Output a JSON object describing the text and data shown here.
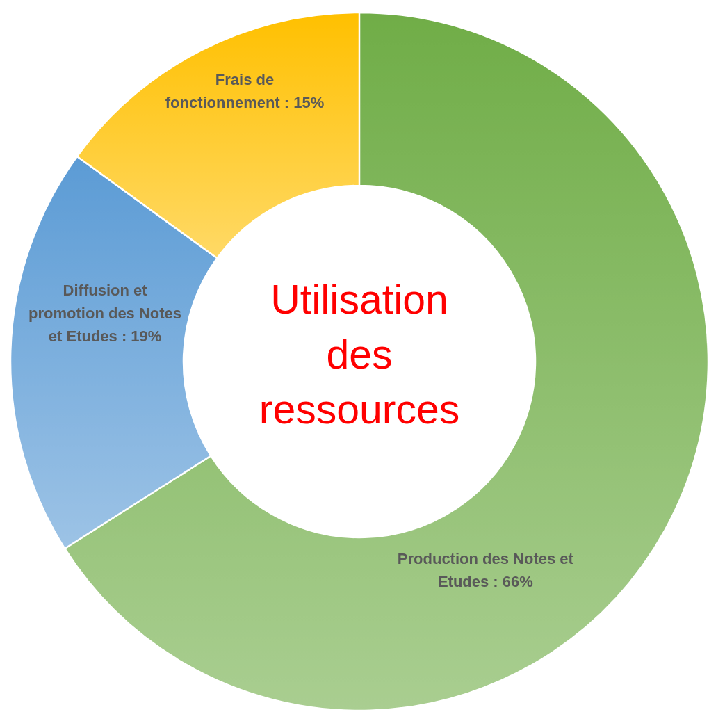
{
  "chart_data": {
    "type": "donut",
    "title": "Utilisation des ressources",
    "categories": [
      "Production des Notes et Etudes",
      "Diffusion et promotion des Notes et Etudes",
      "Frais de fonctionnement"
    ],
    "values": [
      66,
      19,
      15
    ],
    "value_labels": [
      "66%",
      "19%",
      "15%"
    ],
    "colors": [
      "#70ad47",
      "#5b9bd5",
      "#ffc000"
    ]
  }
}
